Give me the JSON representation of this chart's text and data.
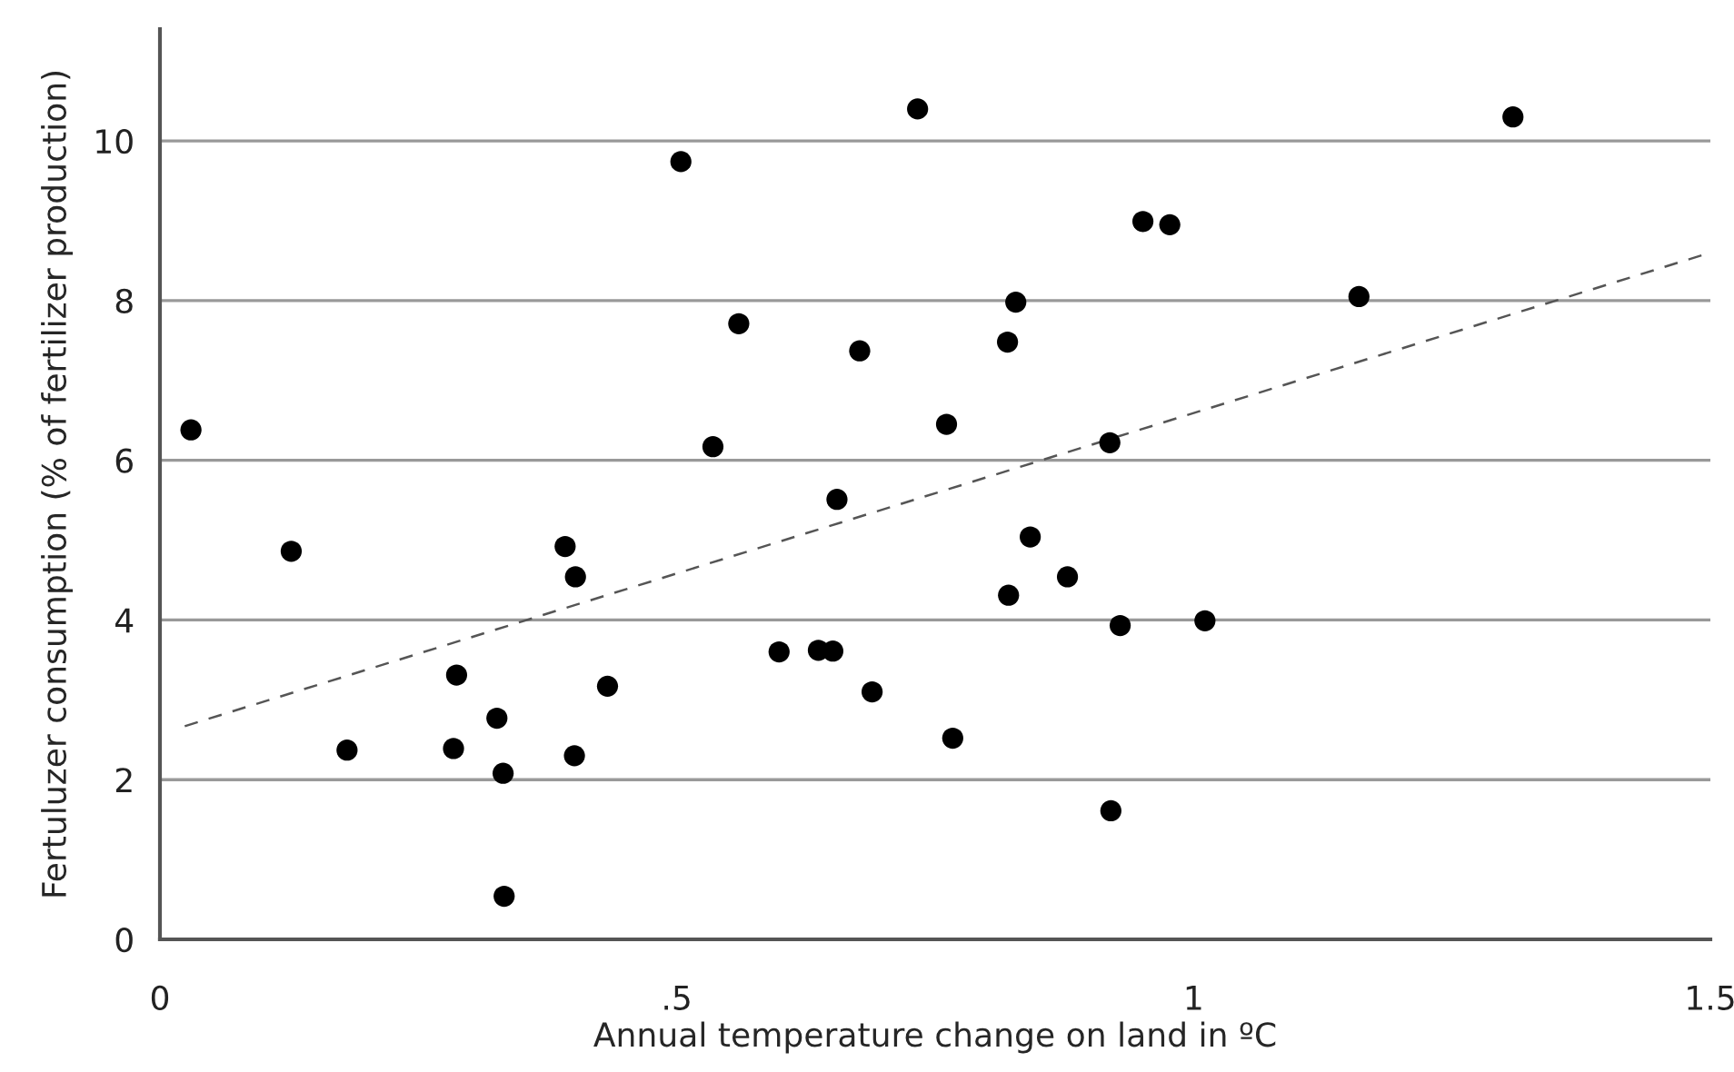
{
  "chart_data": {
    "type": "scatter",
    "xlabel": "Annual temperature change on land in ºC",
    "ylabel": "Fertuluzer consumption (% of fertilizer production)",
    "xlim": [
      0,
      1.5
    ],
    "xticks": [
      0,
      {
        "value": 0.5,
        "label": ".5"
      },
      1,
      1.5
    ],
    "ylim": [
      0,
      11.4
    ],
    "yticks": [
      0,
      2,
      4,
      6,
      8,
      10
    ],
    "grid": "y",
    "marker": "circle",
    "legend": false,
    "series": [
      {
        "color": "#000000",
        "x": [
          0.03,
          0.504,
          0.56,
          0.535,
          0.677,
          0.655,
          0.127,
          0.392,
          0.402,
          0.287,
          0.181,
          0.284,
          0.326,
          0.332,
          0.401,
          0.433,
          0.333,
          0.599,
          0.637,
          0.651,
          0.689,
          0.733,
          1.309,
          0.951,
          0.977,
          0.828,
          1.16,
          0.82,
          0.761,
          0.919,
          0.842,
          0.878,
          0.821,
          0.929,
          1.011,
          0.767,
          0.92
        ],
        "values": [
          6.38,
          9.74,
          7.71,
          6.17,
          7.37,
          5.51,
          4.86,
          4.92,
          4.54,
          3.31,
          2.37,
          2.39,
          2.77,
          2.08,
          2.3,
          3.17,
          0.54,
          3.6,
          3.62,
          3.61,
          3.1,
          10.4,
          10.3,
          8.99,
          8.95,
          7.98,
          8.05,
          7.48,
          6.45,
          6.22,
          5.04,
          4.54,
          4.31,
          3.93,
          3.99,
          2.52,
          1.61
        ]
      },
      {
        "type": "line",
        "color": "#555555",
        "line_style": "dashed",
        "marker": "none",
        "x": [
          0.024,
          1.5
        ],
        "values": [
          2.67,
          8.6
        ]
      }
    ]
  }
}
